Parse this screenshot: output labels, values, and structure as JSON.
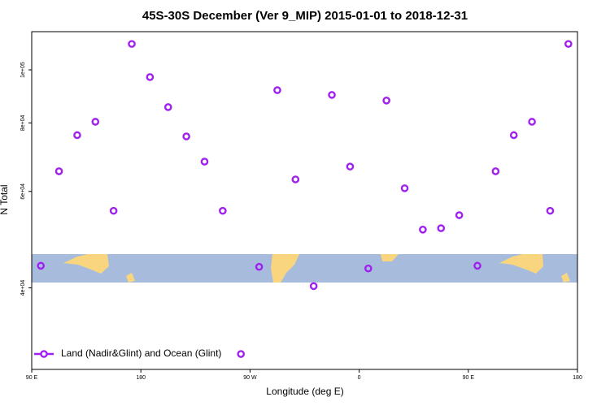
{
  "chart_data": {
    "type": "scatter",
    "title": "45S-30S December (Ver 9_MIP)   2015-01-01 to 2018-12-31",
    "x_label": "Longitude (deg E)",
    "y_label": "N Total",
    "log_y": true,
    "legend_position": "bottom-left",
    "xlim": [
      90,
      540
    ],
    "ylim": [
      28400,
      117400
    ],
    "xticks": [
      {
        "value": 90,
        "label": "90 E"
      },
      {
        "value": 180,
        "label": "180"
      },
      {
        "value": 270,
        "label": "90 W"
      },
      {
        "value": 360,
        "label": "0"
      },
      {
        "value": 450,
        "label": "90 E"
      },
      {
        "value": 540,
        "label": "180"
      }
    ],
    "yticks": [
      {
        "value": 40000,
        "label": "4e+04"
      },
      {
        "value": 60000,
        "label": "6e+04"
      },
      {
        "value": 80000,
        "label": "8e+04"
      },
      {
        "value": 100000,
        "label": "1e+05"
      }
    ],
    "series": [
      {
        "name": "Land (Nadir&Glint) and Ocean (Glint)",
        "color": "#a020f0",
        "x": [
          97.5,
          112.5,
          127.5,
          142.5,
          157.5,
          172.5,
          187.5,
          202.5,
          217.5,
          232.5,
          247.5,
          262.5,
          277.5,
          292.5,
          307.5,
          322.5,
          337.5,
          352.5,
          367.5,
          382.5,
          397.5,
          412.5,
          427.5,
          442.5,
          457.5,
          472.5,
          487.5,
          502.5,
          517.5,
          532.5
        ],
        "values": [
          43900,
          65300,
          76000,
          80400,
          55300,
          111500,
          97000,
          85500,
          75600,
          68000,
          55300,
          30300,
          43700,
          91800,
          63100,
          40300,
          90000,
          66600,
          43400,
          87900,
          60800,
          51100,
          51400,
          54300,
          43900,
          65300,
          76000,
          80400,
          55300,
          111500
        ]
      }
    ]
  }
}
